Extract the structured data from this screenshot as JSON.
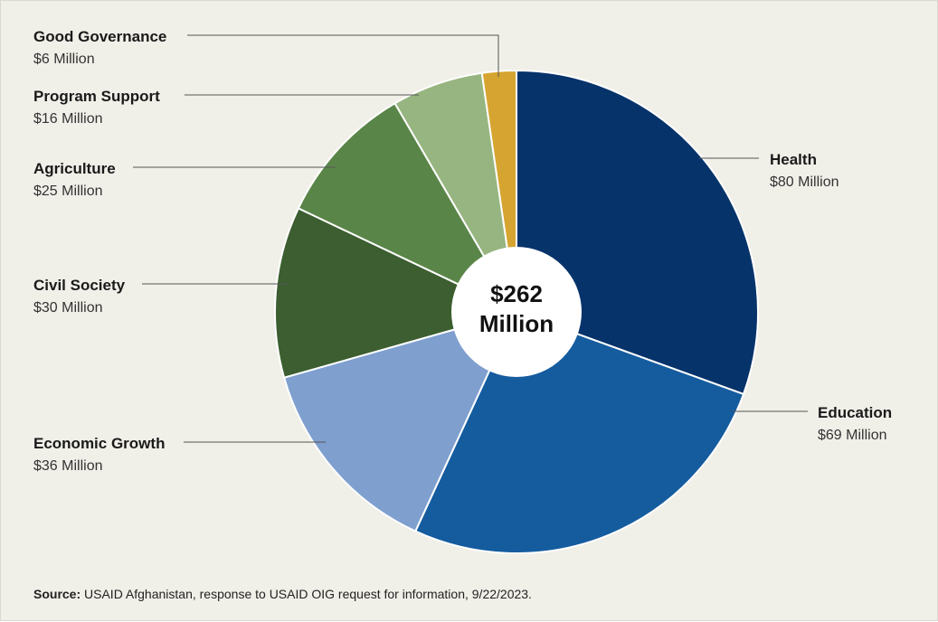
{
  "chart_data": {
    "type": "pie",
    "total_label_line1": "$262",
    "total_label_line2": "Million",
    "slices": [
      {
        "label": "Health",
        "value_label": "$80 Million",
        "value": 80,
        "color": "#06336a"
      },
      {
        "label": "Education",
        "value_label": "$69 Million",
        "value": 69,
        "color": "#155c9f"
      },
      {
        "label": "Economic Growth",
        "value_label": "$36 Million",
        "value": 36,
        "color": "#7f9fcf"
      },
      {
        "label": "Civil Society",
        "value_label": "$30 Million",
        "value": 30,
        "color": "#3c5e30"
      },
      {
        "label": "Agriculture",
        "value_label": "$25 Million",
        "value": 25,
        "color": "#5a8548"
      },
      {
        "label": "Program Support",
        "value_label": "$16 Million",
        "value": 16,
        "color": "#97b580"
      },
      {
        "label": "Good Governance",
        "value_label": "$6 Million",
        "value": 6,
        "color": "#d6a531"
      }
    ]
  },
  "source": {
    "prefix": "Source:",
    "text": " USAID Afghanistan, response to USAID OIG request for information, 9/22/2023."
  }
}
